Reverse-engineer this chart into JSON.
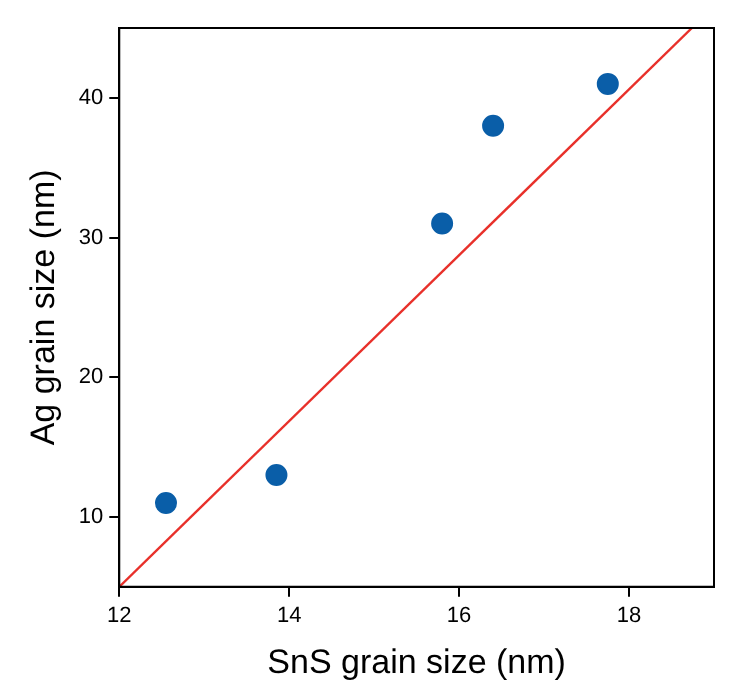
{
  "chart_data": {
    "type": "scatter",
    "xlabel": "SnS grain size (nm)",
    "ylabel": "Ag grain size (nm)",
    "xlim": [
      12,
      19
    ],
    "ylim": [
      5,
      45
    ],
    "xticks": [
      12,
      14,
      16,
      18
    ],
    "yticks": [
      10,
      20,
      30,
      40
    ],
    "grid": false,
    "series": [
      {
        "marker": "circle",
        "color": "#0a5ea8",
        "x": [
          12.55,
          13.85,
          15.8,
          16.4,
          17.75
        ],
        "values": [
          11,
          13,
          31,
          38,
          41
        ]
      },
      {
        "type": "line",
        "marker": "none",
        "color": "#e8302a",
        "x": [
          12,
          18.74
        ],
        "values": [
          5,
          45
        ]
      }
    ]
  }
}
